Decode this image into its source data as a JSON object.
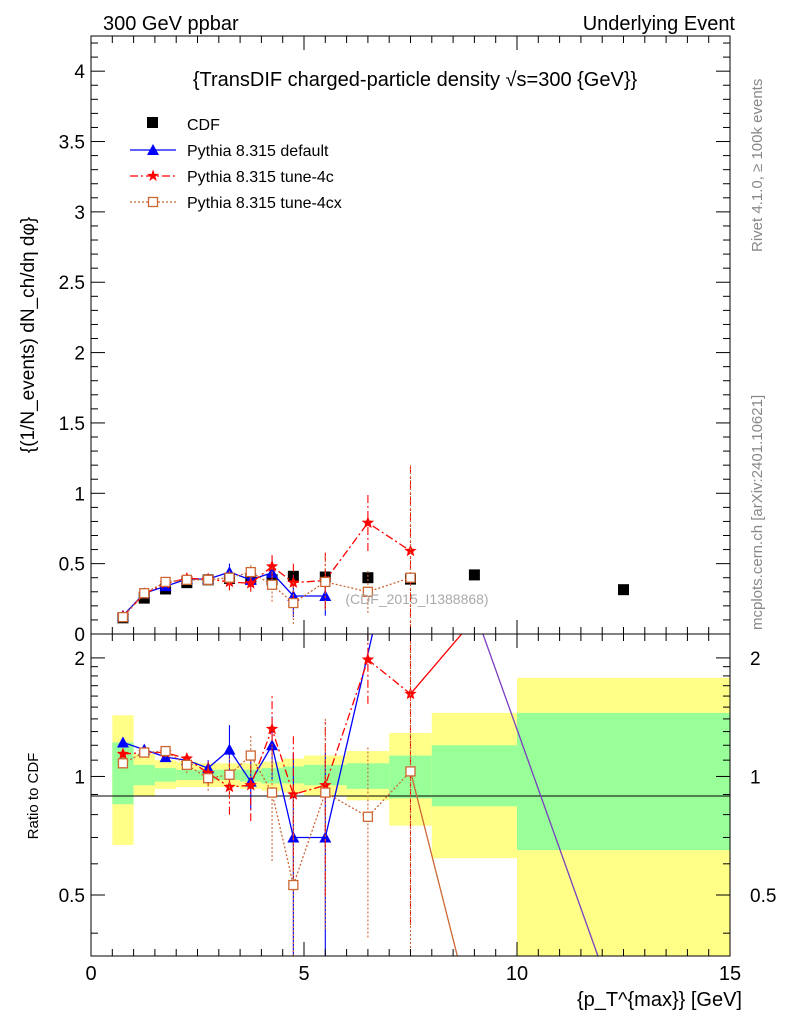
{
  "header": {
    "left": "300 GeV ppbar",
    "right": "Underlying Event"
  },
  "side_labels": {
    "rivet": "Rivet 4.1.0, ≥ 100k events",
    "mcplots": "mcplots.cern.ch [arXiv:2401.10621]"
  },
  "chart_data": [
    {
      "type": "scatter",
      "title": "{TransDIF charged-particle density √s=300 {GeV}}",
      "ylabel": "{(1/N_events) dN_ch/dη dφ}",
      "xlim": [
        0,
        15
      ],
      "ylim": [
        0,
        4.25
      ],
      "yticks": [
        "0",
        "0.5",
        "1",
        "1.5",
        "2",
        "2.5",
        "3",
        "3.5",
        "4"
      ],
      "watermark": "(CDF_2015_I1388868)",
      "legend": [
        "CDF",
        "Pythia 8.315 default",
        "Pythia 8.315 tune-4c",
        "Pythia 8.315 tune-4cx"
      ],
      "series": [
        {
          "name": "CDF",
          "color": "#000000",
          "marker": "square",
          "x": [
            0.75,
            1.25,
            1.75,
            2.25,
            2.75,
            3.25,
            3.75,
            4.25,
            4.75,
            5.5,
            6.5,
            7.5,
            9.0,
            12.5
          ],
          "y": [
            0.115,
            0.255,
            0.32,
            0.365,
            0.385,
            0.395,
            0.39,
            0.385,
            0.41,
            0.405,
            0.4,
            0.39,
            0.42,
            0.315
          ]
        },
        {
          "name": "Pythia 8.315 default",
          "color": "#0000ff",
          "marker": "triangle",
          "x": [
            0.75,
            1.25,
            1.75,
            2.25,
            2.75,
            3.25,
            3.75,
            4.25,
            4.75,
            5.5
          ],
          "y": [
            0.13,
            0.29,
            0.34,
            0.39,
            0.39,
            0.44,
            0.385,
            0.435,
            0.27,
            0.27
          ],
          "err": [
            0.02,
            0.025,
            0.025,
            0.03,
            0.03,
            0.06,
            0.05,
            0.11,
            0.15,
            0.14
          ]
        },
        {
          "name": "Pythia 8.315 tune-4c",
          "color": "#ff0000",
          "marker": "star",
          "x": [
            0.75,
            1.25,
            1.75,
            2.25,
            2.75,
            3.25,
            3.75,
            4.25,
            4.75,
            5.5,
            6.5,
            7.5
          ],
          "y": [
            0.125,
            0.285,
            0.36,
            0.395,
            0.39,
            0.37,
            0.36,
            0.48,
            0.365,
            0.38,
            0.79,
            0.59
          ],
          "err": [
            0.02,
            0.025,
            0.025,
            0.03,
            0.04,
            0.06,
            0.06,
            0.09,
            0.15,
            0.2,
            0.2,
            0.6
          ]
        },
        {
          "name": "Pythia 8.315 tune-4cx",
          "color": "#cc6633",
          "marker": "opensquare",
          "x": [
            0.75,
            1.25,
            1.75,
            2.25,
            2.75,
            3.25,
            3.75,
            4.25,
            4.75,
            5.5,
            6.5,
            7.5
          ],
          "y": [
            0.12,
            0.29,
            0.37,
            0.385,
            0.385,
            0.4,
            0.44,
            0.35,
            0.22,
            0.37,
            0.3,
            0.4
          ],
          "err": [
            0.02,
            0.02,
            0.03,
            0.03,
            0.04,
            0.05,
            0.05,
            0.12,
            0.15,
            0.2,
            0.15,
            0.8
          ]
        }
      ]
    },
    {
      "type": "line",
      "ylabel": "Ratio to CDF",
      "xlabel": "{p_T^{max}} [GeV]",
      "xlim": [
        0,
        15
      ],
      "ylim": [
        0.35,
        2.3
      ],
      "xticks": [
        "0",
        "5",
        "10",
        "15"
      ],
      "yticks": [
        "0.5",
        "1",
        "2"
      ],
      "bands": [
        {
          "x0": 0.5,
          "x1": 1.0,
          "yellow": [
            0.67,
            1.43
          ],
          "green": [
            0.85,
            1.22
          ]
        },
        {
          "x0": 1.0,
          "x1": 1.5,
          "yellow": [
            0.89,
            1.14
          ],
          "green": [
            0.95,
            1.07
          ]
        },
        {
          "x0": 1.5,
          "x1": 2.0,
          "yellow": [
            0.93,
            1.1
          ],
          "green": [
            0.97,
            1.05
          ]
        },
        {
          "x0": 2.0,
          "x1": 2.5,
          "yellow": [
            0.94,
            1.09
          ],
          "green": [
            0.98,
            1.04
          ]
        },
        {
          "x0": 2.5,
          "x1": 3.0,
          "yellow": [
            0.94,
            1.08
          ],
          "green": [
            0.98,
            1.04
          ]
        },
        {
          "x0": 3.0,
          "x1": 3.5,
          "yellow": [
            0.94,
            1.08
          ],
          "green": [
            0.98,
            1.04
          ]
        },
        {
          "x0": 3.5,
          "x1": 4.0,
          "yellow": [
            0.93,
            1.08
          ],
          "green": [
            0.97,
            1.04
          ]
        },
        {
          "x0": 4.0,
          "x1": 4.5,
          "yellow": [
            0.92,
            1.09
          ],
          "green": [
            0.96,
            1.05
          ]
        },
        {
          "x0": 4.5,
          "x1": 5.0,
          "yellow": [
            0.91,
            1.11
          ],
          "green": [
            0.96,
            1.06
          ]
        },
        {
          "x0": 5.0,
          "x1": 6.0,
          "yellow": [
            0.89,
            1.13
          ],
          "green": [
            0.95,
            1.07
          ]
        },
        {
          "x0": 6.0,
          "x1": 7.0,
          "yellow": [
            0.87,
            1.16
          ],
          "green": [
            0.93,
            1.08
          ]
        },
        {
          "x0": 7.0,
          "x1": 8.0,
          "yellow": [
            0.75,
            1.29
          ],
          "green": [
            0.88,
            1.13
          ]
        },
        {
          "x0": 8.0,
          "x1": 10.0,
          "yellow": [
            0.62,
            1.45
          ],
          "green": [
            0.84,
            1.2
          ]
        },
        {
          "x0": 10.0,
          "x1": 15.0,
          "yellow": [
            0.3,
            1.78
          ],
          "green": [
            0.65,
            1.45
          ]
        }
      ],
      "series": [
        {
          "name": "Pythia 8.315 default",
          "color": "#0000ff",
          "marker": "triangle",
          "x": [
            0.75,
            1.25,
            1.75,
            2.25,
            2.75,
            3.25,
            3.75,
            4.25,
            4.75,
            5.5
          ],
          "y": [
            1.22,
            1.17,
            1.12,
            1.1,
            1.05,
            1.17,
            0.97,
            1.2,
            0.7,
            0.7
          ],
          "err": [
            0.03,
            0.03,
            0.03,
            0.04,
            0.05,
            0.18,
            0.15,
            0.22,
            0.45,
            0.45
          ]
        },
        {
          "name": "Pythia 8.315 tune-4c",
          "color": "#ff0000",
          "marker": "star",
          "x": [
            0.75,
            1.25,
            1.75,
            2.25,
            2.75,
            3.25,
            3.75,
            4.25,
            4.75,
            5.5,
            6.5,
            7.5
          ],
          "y": [
            1.14,
            1.15,
            1.15,
            1.11,
            1.02,
            0.94,
            0.95,
            1.32,
            0.9,
            0.95,
            1.98,
            1.62
          ],
          "err": [
            0.03,
            0.03,
            0.03,
            0.05,
            0.07,
            0.14,
            0.18,
            0.3,
            0.38,
            0.45,
            0.45,
            1.2
          ]
        },
        {
          "name": "Pythia 8.315 tune-4cx",
          "color": "#cc6633",
          "marker": "opensquare",
          "x": [
            0.75,
            1.25,
            1.75,
            2.25,
            2.75,
            3.25,
            3.75,
            4.25,
            4.75,
            5.5,
            6.5,
            7.5
          ],
          "y": [
            1.08,
            1.15,
            1.16,
            1.07,
            0.99,
            1.01,
            1.13,
            0.91,
            0.53,
            0.91,
            0.79,
            1.03
          ],
          "err": [
            0.03,
            0.03,
            0.04,
            0.05,
            0.07,
            0.12,
            0.14,
            0.3,
            0.4,
            0.5,
            0.4,
            1.5
          ]
        }
      ],
      "offscale_lines": [
        {
          "color": "#0000ff",
          "from": [
            5.5,
            0.7
          ],
          "to": [
            7.5,
            6.0
          ]
        },
        {
          "color": "#ff0000",
          "from": [
            7.5,
            1.62
          ],
          "to": [
            8.7,
            2.3
          ]
        },
        {
          "color": "#cc6633",
          "from": [
            7.5,
            1.03
          ],
          "to": [
            8.6,
            0.35
          ]
        },
        {
          "color": "#7a3fbf",
          "from": [
            9.2,
            2.3
          ],
          "to": [
            11.9,
            0.35
          ]
        }
      ]
    }
  ]
}
